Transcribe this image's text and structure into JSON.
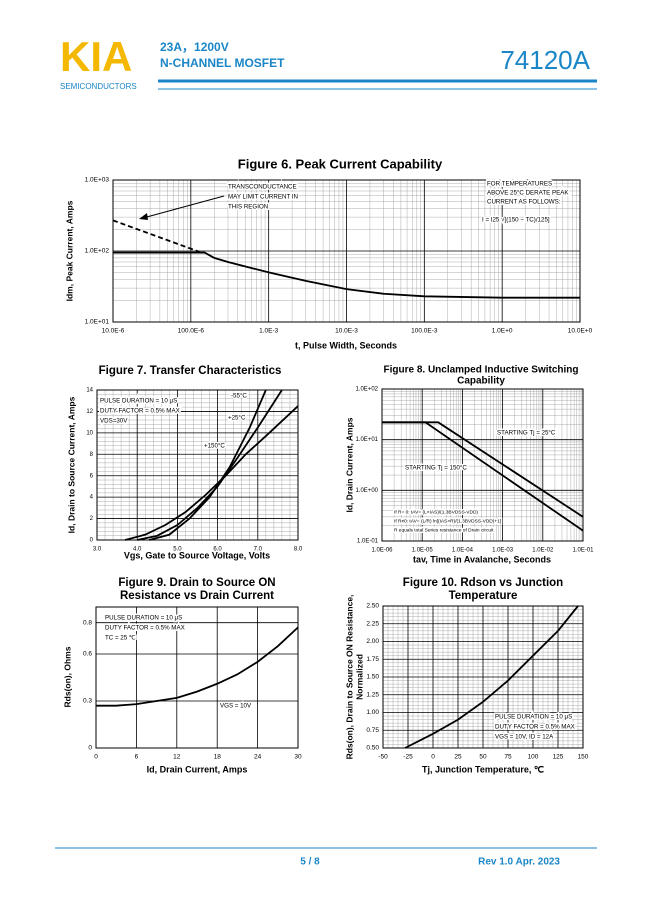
{
  "header": {
    "logo": "KIA",
    "company": "SEMICONDUCTORS",
    "spec": [
      "23A，1200V",
      "N-CHANNEL MOSFET"
    ],
    "part": "74120A"
  },
  "chart_data": [
    {
      "type": "line",
      "title": [
        "Figure 6. Peak Current Capability"
      ],
      "x_label": "t, Pulse Width, Seconds",
      "y_label": [
        "Idm, Peak Current, Amps"
      ],
      "xlog": true,
      "ylog": true,
      "minor_grid": true,
      "xlim": [
        1e-05,
        10
      ],
      "ylim": [
        10,
        1000
      ],
      "xticks": [
        {
          "value": 1e-05,
          "label": "10.0E-6"
        },
        {
          "value": 0.0001,
          "label": "100.0E-6"
        },
        {
          "value": 0.001,
          "label": "1.0E-3"
        },
        {
          "value": 0.01,
          "label": "10.0E-3"
        },
        {
          "value": 0.1,
          "label": "100.0E-3"
        },
        {
          "value": 1,
          "label": "1.0E+0"
        },
        {
          "value": 10,
          "label": "10.0E+0"
        }
      ],
      "yticks": [
        {
          "value": 10,
          "label": "1.0E+01"
        },
        {
          "value": 100,
          "label": "1.0E+02"
        },
        {
          "value": 1000,
          "label": "1.0E+03"
        }
      ],
      "series": [
        {
          "color": "#000000",
          "dash": false,
          "x": [
            1e-05,
            0.00015,
            0.0002,
            0.0003,
            0.001,
            0.003,
            0.01,
            0.03,
            0.1,
            1,
            10
          ],
          "values": [
            95,
            95,
            80,
            70,
            50,
            38,
            29,
            25,
            23,
            22,
            22
          ]
        },
        {
          "color": "#000000",
          "dash": true,
          "x": [
            1e-05,
            0.00013
          ],
          "values": [
            270,
            97
          ]
        }
      ],
      "annotations": [
        "TRANSCONDUCTANCE",
        "MAY LIMIT CURRENT IN",
        "THIS REGION",
        "FOR TEMPERATURES",
        "ABOVE 25°C DERATE PEAK",
        "CURRENT AS FOLLOWS:",
        "I = I25 √[(150 − TC)/125]"
      ]
    },
    {
      "type": "line",
      "title": [
        "Figure 7. Transfer Characteristics"
      ],
      "x_label": "Vgs, Gate to Source Voltage, Volts",
      "y_label": [
        "Id, Drain to Source Current, Amps"
      ],
      "xlog": false,
      "ylog": false,
      "minor_grid": true,
      "xlim": [
        3,
        8
      ],
      "ylim": [
        0,
        14
      ],
      "xticks": [
        {
          "value": 3,
          "label": "3.0"
        },
        {
          "value": 4,
          "label": "4.0"
        },
        {
          "value": 5,
          "label": "5.0"
        },
        {
          "value": 6,
          "label": "6.0"
        },
        {
          "value": 7,
          "label": "7.0"
        },
        {
          "value": 8,
          "label": "8.0"
        }
      ],
      "yticks": [
        0,
        2,
        4,
        6,
        8,
        10,
        12,
        14
      ],
      "series": [
        {
          "color": "#000000",
          "dash": false,
          "x": [
            4.3,
            4.8,
            5.3,
            5.8,
            6.3,
            6.8,
            7.2
          ],
          "values": [
            0,
            0.5,
            2,
            4,
            6.8,
            10.5,
            14
          ]
        },
        {
          "color": "#000000",
          "dash": false,
          "x": [
            4.0,
            4.5,
            5.0,
            5.5,
            6.0,
            6.5,
            7.0,
            7.6
          ],
          "values": [
            0,
            0.4,
            1.4,
            3,
            5,
            7.7,
            10.5,
            14
          ]
        },
        {
          "color": "#000000",
          "dash": false,
          "x": [
            3.7,
            4.2,
            4.7,
            5.2,
            5.7,
            6.2,
            6.7,
            7.2,
            8.0
          ],
          "values": [
            0,
            0.5,
            1.4,
            2.6,
            4.2,
            6,
            8,
            9.7,
            12.5
          ]
        }
      ],
      "annotations": [
        "PULSE DURATION = 10 μS",
        "DUTY FACTOR = 0.5% MAX",
        "VDS=30V",
        "-55°C",
        "+25°C",
        "+150°C"
      ]
    },
    {
      "type": "line",
      "title": [
        "Figure 8. Unclamped Inductive Switching",
        "Capability"
      ],
      "x_label": "tav, Time in Avalanche, Seconds",
      "y_label": [
        "Id, Drain Current, Amps"
      ],
      "xlog": true,
      "ylog": true,
      "minor_grid": true,
      "xlim": [
        1e-06,
        0.1
      ],
      "ylim": [
        0.1,
        100
      ],
      "xticks": [
        {
          "value": 1e-06,
          "label": "1.0E-06"
        },
        {
          "value": 1e-05,
          "label": "1.0E-05"
        },
        {
          "value": 0.0001,
          "label": "1.0E-04"
        },
        {
          "value": 0.001,
          "label": "1.0E-03"
        },
        {
          "value": 0.01,
          "label": "1.0E-02"
        },
        {
          "value": 0.1,
          "label": "1.0E-01"
        }
      ],
      "yticks": [
        {
          "value": 0.1,
          "label": "1.0E-01"
        },
        {
          "value": 1,
          "label": "1.0E+00"
        },
        {
          "value": 10,
          "label": "1.0E+01"
        },
        {
          "value": 100,
          "label": "1.0E+02"
        }
      ],
      "series": [
        {
          "color": "#000000",
          "dash": false,
          "x": [
            1e-06,
            2.5e-05,
            0.1
          ],
          "values": [
            22,
            22,
            0.3
          ]
        },
        {
          "color": "#000000",
          "dash": false,
          "x": [
            1e-06,
            1.2e-05,
            0.1
          ],
          "values": [
            22,
            22,
            0.16
          ]
        }
      ],
      "annotations": [
        "STARTING Tj = 25°C",
        "STARTING Tj = 150°C",
        "If R= 0: tAV= (L×IAS)/(1.3BVDSS-VDD)",
        "If R≠0: tAV= (L/R) ln[(IAS×R)/(1.3BVDSS-VDD)+1]",
        "R equals total Series resistance of Drain circuit"
      ]
    },
    {
      "type": "line",
      "title": [
        "Figure 9. Drain to Source ON",
        "Resistance vs Drain Current"
      ],
      "x_label": "Id, Drain Current, Amps",
      "y_label": [
        "Rds(on),   Ohms"
      ],
      "xlog": false,
      "ylog": false,
      "minor_grid": false,
      "xlim": [
        0,
        30
      ],
      "ylim": [
        0,
        0.9
      ],
      "xticks": [
        0,
        6,
        12,
        18,
        24,
        30
      ],
      "yticks": [
        0,
        0.3,
        0.6,
        0.8
      ],
      "series": [
        {
          "color": "#000000",
          "dash": false,
          "x": [
            0,
            3,
            6,
            9,
            12,
            15,
            18,
            21,
            24,
            27,
            30
          ],
          "values": [
            0.27,
            0.27,
            0.28,
            0.3,
            0.32,
            0.36,
            0.41,
            0.47,
            0.55,
            0.65,
            0.77
          ]
        }
      ],
      "annotations": [
        "PULSE DURATION = 10 μS",
        "DUTY FACTOR = 0.5% MAX",
        "TC = 25 ℃",
        "VGS = 10V"
      ]
    },
    {
      "type": "line",
      "title": [
        "Figure 10. Rdson vs Junction",
        "Temperature"
      ],
      "x_label": "Tj, Junction Temperature, ℃",
      "y_label": [
        "Rds(on), Drain to Source ON Resistance,",
        "Normalized"
      ],
      "xlog": false,
      "ylog": false,
      "minor_grid": true,
      "xlim": [
        -50,
        150
      ],
      "ylim": [
        0.5,
        2.5
      ],
      "xticks": [
        -50,
        -25,
        0,
        25,
        50,
        75,
        100,
        125,
        150
      ],
      "yticks": [
        {
          "value": 0.5,
          "label": "0.50"
        },
        0.75,
        {
          "value": 1,
          "label": "1.00"
        },
        1.25,
        {
          "value": 1.5,
          "label": "1.50"
        },
        1.75,
        {
          "value": 2,
          "label": "2.00"
        },
        2.25,
        {
          "value": 2.5,
          "label": "2.50"
        }
      ],
      "series": [
        {
          "color": "#000000",
          "dash": false,
          "x": [
            -28,
            0,
            25,
            50,
            75,
            100,
            125,
            145
          ],
          "values": [
            0.5,
            0.7,
            0.9,
            1.15,
            1.45,
            1.8,
            2.15,
            2.5
          ]
        }
      ],
      "annotations": [
        "PULSE DURATION = 10 μS",
        "DUTY FACTOR = 0.5% MAX",
        "VGS = 10V, ID = 12A"
      ]
    }
  ],
  "footer": {
    "page": "5 / 8",
    "revision": "Rev 1.0 Apr. 2023"
  }
}
